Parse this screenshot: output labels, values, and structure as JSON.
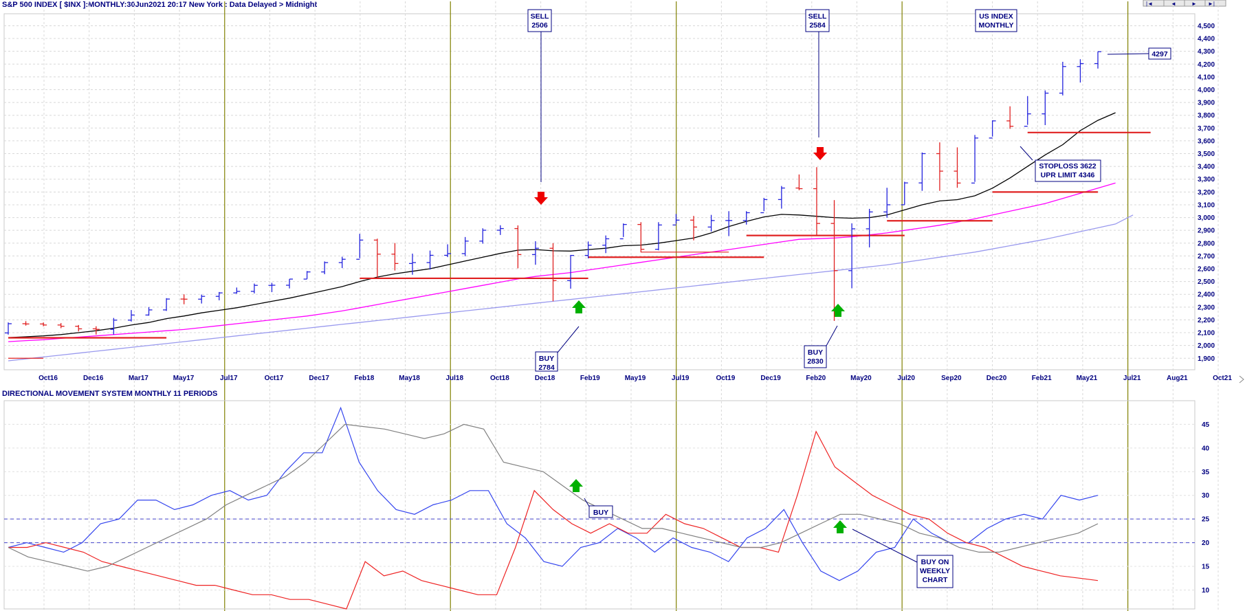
{
  "header": {
    "title": "S&P 500 INDEX [ $INX ]:MONTHLY:30Jun2021 20:17 New York : Data Delayed > Midnight",
    "nav_first": "|◄",
    "nav_prev": "◄",
    "nav_next": "►",
    "nav_last": "►|"
  },
  "lower_panel": {
    "title": "DIRECTIONAL MOVEMENT SYSTEM MONTHLY 11 PERIODS"
  },
  "colors": {
    "up_bar": "#2222dd",
    "down_bar": "#e02020",
    "ma_short": "#000000",
    "ma_mid": "#ff00ff",
    "ma_long": "#9999ee",
    "cycle_line": "#808000",
    "di_plus": "#3344ee",
    "di_minus": "#ee2222",
    "adx": "#808080",
    "buy_arrow": "#00b000",
    "sell_arrow": "#ee0000"
  },
  "chart_data": [
    {
      "type": "bar",
      "subtype": "ohlc",
      "title": "S&P 500 INDEX [ $INX ]:MONTHLY:30Jun2021 20:17 New York : Data Delayed > Midnight",
      "x_tick_labels": [
        "Oct16",
        "Dec16",
        "Mar17",
        "May17",
        "Jul17",
        "Oct17",
        "Dec17",
        "Feb18",
        "May18",
        "Jul18",
        "Oct18",
        "Dec18",
        "Feb19",
        "May19",
        "Jul19",
        "Oct19",
        "Dec19",
        "Feb20",
        "May20",
        "Jul20",
        "Sep20",
        "Dec20",
        "Feb21",
        "May21",
        "Jul21",
        "Aug21",
        "Oct21"
      ],
      "y_ticks": [
        1900,
        2000,
        2100,
        2200,
        2300,
        2400,
        2500,
        2600,
        2700,
        2800,
        2900,
        3000,
        3100,
        3200,
        3300,
        3400,
        3500,
        3600,
        3700,
        3800,
        3900,
        4000,
        4100,
        4200,
        4300,
        4400,
        4500
      ],
      "ylim": [
        1810,
        4540
      ],
      "grid": true,
      "bars": [
        {
          "o": 2098,
          "h": 2180,
          "l": 2085,
          "c": 2170,
          "up": true
        },
        {
          "o": 2170,
          "h": 2190,
          "l": 2155,
          "c": 2168,
          "up": false
        },
        {
          "o": 2168,
          "h": 2180,
          "l": 2150,
          "c": 2160,
          "up": false
        },
        {
          "o": 2160,
          "h": 2175,
          "l": 2135,
          "c": 2150,
          "up": false
        },
        {
          "o": 2150,
          "h": 2160,
          "l": 2110,
          "c": 2130,
          "up": false
        },
        {
          "o": 2130,
          "h": 2150,
          "l": 2085,
          "c": 2126,
          "up": false
        },
        {
          "o": 2126,
          "h": 2215,
          "l": 2085,
          "c": 2198,
          "up": true
        },
        {
          "o": 2198,
          "h": 2277,
          "l": 2187,
          "c": 2238,
          "up": true
        },
        {
          "o": 2238,
          "h": 2300,
          "l": 2233,
          "c": 2278,
          "up": true
        },
        {
          "o": 2278,
          "h": 2370,
          "l": 2270,
          "c": 2363,
          "up": true
        },
        {
          "o": 2363,
          "h": 2400,
          "l": 2322,
          "c": 2362,
          "up": false
        },
        {
          "o": 2362,
          "h": 2398,
          "l": 2328,
          "c": 2384,
          "up": true
        },
        {
          "o": 2384,
          "h": 2418,
          "l": 2353,
          "c": 2411,
          "up": true
        },
        {
          "o": 2411,
          "h": 2453,
          "l": 2405,
          "c": 2423,
          "up": true
        },
        {
          "o": 2423,
          "h": 2484,
          "l": 2407,
          "c": 2470,
          "up": true
        },
        {
          "o": 2470,
          "h": 2490,
          "l": 2417,
          "c": 2471,
          "up": true
        },
        {
          "o": 2471,
          "h": 2519,
          "l": 2446,
          "c": 2519,
          "up": true
        },
        {
          "o": 2519,
          "h": 2582,
          "l": 2520,
          "c": 2575,
          "up": true
        },
        {
          "o": 2575,
          "h": 2657,
          "l": 2557,
          "c": 2648,
          "up": true
        },
        {
          "o": 2648,
          "h": 2694,
          "l": 2605,
          "c": 2674,
          "up": true
        },
        {
          "o": 2674,
          "h": 2873,
          "l": 2683,
          "c": 2824,
          "up": true
        },
        {
          "o": 2824,
          "h": 2835,
          "l": 2533,
          "c": 2714,
          "up": false
        },
        {
          "o": 2714,
          "h": 2801,
          "l": 2586,
          "c": 2641,
          "up": false
        },
        {
          "o": 2641,
          "h": 2718,
          "l": 2553,
          "c": 2648,
          "up": true
        },
        {
          "o": 2648,
          "h": 2742,
          "l": 2594,
          "c": 2705,
          "up": true
        },
        {
          "o": 2705,
          "h": 2791,
          "l": 2691,
          "c": 2718,
          "up": true
        },
        {
          "o": 2718,
          "h": 2848,
          "l": 2698,
          "c": 2816,
          "up": true
        },
        {
          "o": 2816,
          "h": 2916,
          "l": 2796,
          "c": 2901,
          "up": true
        },
        {
          "o": 2901,
          "h": 2940,
          "l": 2864,
          "c": 2914,
          "up": true
        },
        {
          "o": 2914,
          "h": 2939,
          "l": 2603,
          "c": 2711,
          "up": false
        },
        {
          "o": 2711,
          "h": 2815,
          "l": 2631,
          "c": 2760,
          "up": true
        },
        {
          "o": 2760,
          "h": 2800,
          "l": 2346,
          "c": 2507,
          "up": false
        },
        {
          "o": 2507,
          "h": 2708,
          "l": 2444,
          "c": 2704,
          "up": true
        },
        {
          "o": 2704,
          "h": 2813,
          "l": 2681,
          "c": 2784,
          "up": true
        },
        {
          "o": 2784,
          "h": 2860,
          "l": 2722,
          "c": 2834,
          "up": true
        },
        {
          "o": 2834,
          "h": 2954,
          "l": 2848,
          "c": 2946,
          "up": true
        },
        {
          "o": 2946,
          "h": 2964,
          "l": 2728,
          "c": 2752,
          "up": false
        },
        {
          "o": 2752,
          "h": 2964,
          "l": 2744,
          "c": 2942,
          "up": true
        },
        {
          "o": 2942,
          "h": 3028,
          "l": 2952,
          "c": 2980,
          "up": true
        },
        {
          "o": 2980,
          "h": 3013,
          "l": 2822,
          "c": 2926,
          "up": false
        },
        {
          "o": 2926,
          "h": 3021,
          "l": 2891,
          "c": 2977,
          "up": true
        },
        {
          "o": 2977,
          "h": 3050,
          "l": 2855,
          "c": 2977,
          "up": true
        },
        {
          "o": 2977,
          "h": 3050,
          "l": 2945,
          "c": 3038,
          "up": true
        },
        {
          "o": 3038,
          "h": 3154,
          "l": 3050,
          "c": 3141,
          "up": true
        },
        {
          "o": 3141,
          "h": 3247,
          "l": 3070,
          "c": 3231,
          "up": true
        },
        {
          "o": 3231,
          "h": 3337,
          "l": 3214,
          "c": 3226,
          "up": false
        },
        {
          "o": 3226,
          "h": 3394,
          "l": 2855,
          "c": 2954,
          "up": false
        },
        {
          "o": 2954,
          "h": 3137,
          "l": 2192,
          "c": 2585,
          "up": false
        },
        {
          "o": 2585,
          "h": 2955,
          "l": 2447,
          "c": 2912,
          "up": true
        },
        {
          "o": 2912,
          "h": 3068,
          "l": 2767,
          "c": 3044,
          "up": true
        },
        {
          "o": 3044,
          "h": 3233,
          "l": 2999,
          "c": 3100,
          "up": true
        },
        {
          "o": 3100,
          "h": 3280,
          "l": 3101,
          "c": 3271,
          "up": true
        },
        {
          "o": 3271,
          "h": 3509,
          "l": 3209,
          "c": 3500,
          "up": true
        },
        {
          "o": 3500,
          "h": 3588,
          "l": 3209,
          "c": 3363,
          "up": false
        },
        {
          "o": 3363,
          "h": 3549,
          "l": 3233,
          "c": 3270,
          "up": false
        },
        {
          "o": 3270,
          "h": 3646,
          "l": 3279,
          "c": 3622,
          "up": true
        },
        {
          "o": 3622,
          "h": 3760,
          "l": 3633,
          "c": 3756,
          "up": true
        },
        {
          "o": 3756,
          "h": 3870,
          "l": 3694,
          "c": 3714,
          "up": false
        },
        {
          "o": 3714,
          "h": 3950,
          "l": 3725,
          "c": 3811,
          "up": true
        },
        {
          "o": 3811,
          "h": 3994,
          "l": 3723,
          "c": 3973,
          "up": true
        },
        {
          "o": 3973,
          "h": 4218,
          "l": 3955,
          "c": 4181,
          "up": true
        },
        {
          "o": 4181,
          "h": 4238,
          "l": 4056,
          "c": 4204,
          "up": true
        },
        {
          "o": 4204,
          "h": 4297,
          "l": 4165,
          "c": 4297,
          "up": true
        }
      ],
      "series": [
        {
          "name": "",
          "color": "#000000",
          "values": [
            2062,
            2068,
            2075,
            2085,
            2100,
            2115,
            2135,
            2160,
            2180,
            2210,
            2230,
            2255,
            2275,
            2295,
            2320,
            2345,
            2370,
            2400,
            2430,
            2460,
            2500,
            2535,
            2560,
            2580,
            2600,
            2630,
            2660,
            2690,
            2720,
            2745,
            2750,
            2740,
            2738,
            2750,
            2760,
            2780,
            2785,
            2800,
            2820,
            2840,
            2880,
            2930,
            2970,
            3005,
            3025,
            3020,
            3010,
            3000,
            2995,
            3000,
            3020,
            3060,
            3100,
            3130,
            3140,
            3170,
            3230,
            3310,
            3400,
            3490,
            3570,
            3680,
            3760,
            3820
          ]
        },
        {
          "name": "",
          "color": "#ff00ff",
          "values": [
            2030,
            2038,
            2045,
            2055,
            2065,
            2075,
            2085,
            2095,
            2105,
            2115,
            2125,
            2140,
            2155,
            2170,
            2185,
            2200,
            2215,
            2230,
            2250,
            2270,
            2295,
            2320,
            2345,
            2370,
            2395,
            2420,
            2445,
            2470,
            2495,
            2520,
            2540,
            2555,
            2570,
            2590,
            2610,
            2630,
            2650,
            2670,
            2690,
            2710,
            2730,
            2750,
            2770,
            2790,
            2810,
            2830,
            2835,
            2840,
            2850,
            2865,
            2880,
            2900,
            2920,
            2940,
            2965,
            2990,
            3020,
            3050,
            3080,
            3110,
            3150,
            3190,
            3230,
            3270
          ]
        },
        {
          "name": "",
          "color": "#9999ee",
          "values": [
            1880,
            1895,
            1910,
            1925,
            1940,
            1955,
            1970,
            1985,
            2000,
            2015,
            2030,
            2045,
            2060,
            2075,
            2090,
            2105,
            2120,
            2135,
            2150,
            2165,
            2180,
            2195,
            2210,
            2225,
            2240,
            2255,
            2270,
            2285,
            2300,
            2315,
            2330,
            2345,
            2360,
            2375,
            2390,
            2405,
            2420,
            2435,
            2450,
            2465,
            2480,
            2495,
            2510,
            2525,
            2540,
            2555,
            2570,
            2585,
            2600,
            2615,
            2630,
            2650,
            2670,
            2690,
            2710,
            2730,
            2755,
            2780,
            2805,
            2830,
            2860,
            2890,
            2920,
            2950,
            3020
          ]
        }
      ],
      "horizontal_levels": [
        {
          "value": 2060,
          "from": 0,
          "to": 9
        },
        {
          "value": 2525,
          "from": 20,
          "to": 33
        },
        {
          "value": 2690,
          "from": 33,
          "to": 43
        },
        {
          "value": 2730,
          "from": 36,
          "to": 41
        },
        {
          "value": 2860,
          "from": 42,
          "to": 51
        },
        {
          "value": 2975,
          "from": 50,
          "to": 56
        },
        {
          "value": 3200,
          "from": 56,
          "to": 62
        },
        {
          "value": 3665,
          "from": 58,
          "to": 65
        },
        {
          "value": 1900,
          "from": 0,
          "to": 2
        }
      ],
      "annotations": [
        {
          "text": "SELL\n2506",
          "target_index": 31,
          "kind": "sell"
        },
        {
          "text": "SELL\n2584",
          "target_index": 46,
          "kind": "sell"
        },
        {
          "text": "BUY\n2784",
          "target_index": 33,
          "kind": "buy"
        },
        {
          "text": "BUY\n2830",
          "target_index": 48,
          "kind": "buy"
        },
        {
          "text": "US INDEX\nMONTHLY",
          "kind": "label"
        },
        {
          "text": "STOPLOSS 3622\nUPR LIMIT 4346",
          "kind": "label"
        },
        {
          "text": "4297",
          "kind": "last"
        }
      ]
    },
    {
      "type": "line",
      "title": "DIRECTIONAL MOVEMENT SYSTEM MONTHLY 11 PERIODS",
      "y_ticks": [
        10,
        15,
        20,
        25,
        30,
        35,
        40,
        45
      ],
      "ylim": [
        6,
        50
      ],
      "reference_lines": [
        20,
        25
      ],
      "grid": true,
      "series": [
        {
          "name": "",
          "color": "#3344ee",
          "values": [
            19,
            20,
            19,
            18,
            20,
            24,
            25,
            29,
            29,
            27,
            28,
            30,
            31,
            29,
            30,
            35,
            39,
            39,
            48.5,
            37,
            31,
            27,
            26,
            28,
            29,
            31,
            31,
            24,
            21,
            16,
            15,
            19,
            20,
            23,
            21,
            18,
            21,
            19,
            18,
            16,
            21,
            23,
            27,
            20,
            14,
            12,
            14,
            18,
            19,
            25,
            22,
            20,
            20,
            23,
            25,
            26,
            25,
            30,
            29,
            30
          ]
        },
        {
          "name": "",
          "color": "#ee2222",
          "values": [
            19,
            19,
            20,
            19,
            18,
            16,
            15,
            14,
            13,
            12,
            11,
            11,
            10,
            9,
            9,
            8,
            8,
            7,
            6,
            16,
            13,
            14,
            12,
            11,
            10,
            9,
            9,
            19,
            31,
            27,
            24,
            22,
            24,
            22,
            22,
            26,
            24,
            23,
            21,
            19,
            19,
            18,
            30,
            43.5,
            36,
            33,
            30,
            28,
            26,
            25,
            22,
            20,
            19,
            17,
            15,
            14,
            13,
            12.5,
            12
          ]
        },
        {
          "name": "",
          "color": "#808080",
          "values": [
            19,
            17,
            16,
            15,
            14,
            15,
            17,
            19,
            21,
            23,
            25,
            28,
            30,
            32,
            34,
            37,
            41,
            45,
            44.5,
            44,
            43,
            42,
            43,
            45,
            44,
            37,
            36,
            35,
            32,
            29,
            27,
            25,
            23,
            23,
            22,
            21,
            20,
            19,
            19,
            20,
            22,
            24,
            26,
            26,
            25,
            24,
            22,
            21,
            19,
            18,
            18,
            19,
            20,
            21,
            22,
            24
          ]
        }
      ],
      "annotations": [
        {
          "text": "BUY",
          "kind": "buy"
        },
        {
          "text": "BUY ON\nWEEKLY\nCHART",
          "kind": "buy"
        }
      ]
    }
  ],
  "labels": {
    "sell1_line1": "SELL",
    "sell1_line2": "2506",
    "sell2_line1": "SELL",
    "sell2_line2": "2584",
    "buy1_line1": "BUY",
    "buy1_line2": "2784",
    "buy2_line1": "BUY",
    "buy2_line2": "2830",
    "usindex_line1": "US INDEX",
    "usindex_line2": "MONTHLY",
    "stop_line1": "STOPLOSS 3622",
    "stop_line2": "UPR LIMIT 4346",
    "last_price": "4297",
    "buy_lower": "BUY",
    "weekly_line1": "BUY ON",
    "weekly_line2": "WEEKLY",
    "weekly_line3": "CHART"
  }
}
